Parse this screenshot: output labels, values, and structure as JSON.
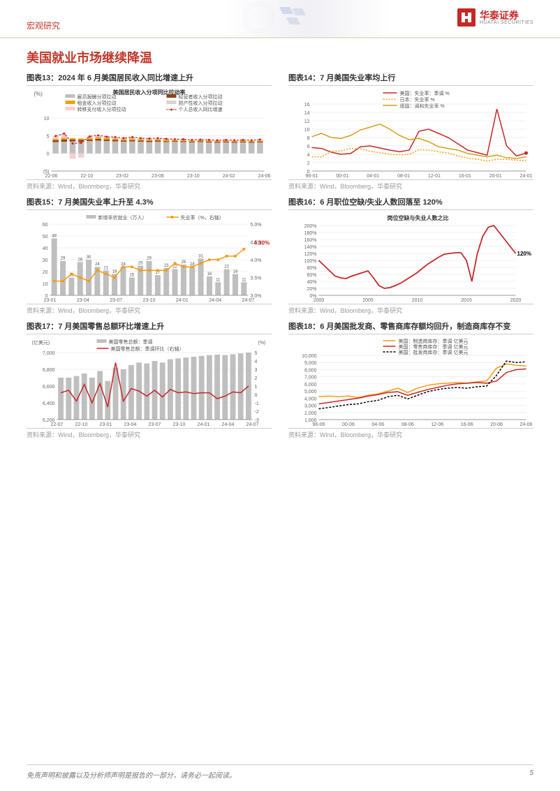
{
  "header": {
    "category": "宏观研究",
    "logo_cn": "华泰证券",
    "logo_en": "HUATAI SECURITIES"
  },
  "page_title": "美国就业市场继续降温",
  "footer": {
    "disclaimer": "免责声明和披露以及分析师声明是报告的一部分，请务必一起阅读。",
    "page_number": "5"
  },
  "source_text": "资料来源：Wind，Bloomberg，华泰研究",
  "colors": {
    "brand_red": "#c62828",
    "accent_red": "#c0392b",
    "bar_gray": "#bfbfbf",
    "orange": "#f39c12",
    "gold": "#d4a017",
    "grid": "#e0e0e0",
    "text_muted": "#999999",
    "brown": "#8b4513",
    "pink": "#f8cecc"
  },
  "charts": {
    "c13": {
      "title": "图表13：2024 年 6 月美国居民收入同比增速上升",
      "subtitle": "美国居民收入分项同比拉动率",
      "y_unit": "(%)",
      "ylim": [
        -5,
        10
      ],
      "yticks": [
        -5,
        0,
        5,
        10
      ],
      "x_labels": [
        "22-06",
        "22-10",
        "23-02",
        "23-06",
        "23-10",
        "24-02",
        "24-06"
      ],
      "legend": [
        {
          "label": "雇员报酬分项拉动",
          "color": "#bfbfbf"
        },
        {
          "label": "经营者收入分项拉动",
          "color": "#8b4513"
        },
        {
          "label": "租金收入分项拉动",
          "color": "#f39c12"
        },
        {
          "label": "财产性收入分项拉动",
          "color": "#d4d4d4"
        },
        {
          "label": "转移支付收入分项拉动",
          "color": "#f8cecc"
        },
        {
          "label": "个人总收入同比增速",
          "color": "#c62828",
          "type": "line"
        }
      ],
      "stacked_bars": {
        "emp": [
          3.2,
          3.3,
          3.4,
          3.3,
          3.5,
          3.6,
          3.5,
          3.4,
          3.3,
          3.4,
          3.3,
          3.2,
          3.3,
          3.2,
          3.3,
          3.2,
          3.1,
          3.2,
          3.1,
          3.0,
          3.1,
          3.0,
          3.1,
          3.0,
          3.1
        ],
        "biz": [
          0.5,
          0.6,
          0.5,
          0.5,
          0.4,
          0.5,
          0.4,
          0.4,
          0.3,
          0.3,
          0.3,
          0.3,
          0.3,
          0.2,
          0.2,
          0.2,
          0.2,
          0.2,
          0.2,
          0.2,
          0.2,
          0.2,
          0.2,
          0.2,
          0.2
        ],
        "rent": [
          0.4,
          0.5,
          0.4,
          0.4,
          0.5,
          0.5,
          0.5,
          0.4,
          0.4,
          0.5,
          0.4,
          0.4,
          0.4,
          0.4,
          0.3,
          0.3,
          0.3,
          0.3,
          0.3,
          0.3,
          0.3,
          0.3,
          0.3,
          0.3,
          0.3
        ],
        "trans": [
          0.8,
          1.2,
          -1.5,
          -1.2,
          0.4,
          0.5,
          0.3,
          0.4,
          0.3,
          0.4,
          0.3,
          0.3,
          0.3,
          0.3,
          0.2,
          0.3,
          0.2,
          0.2,
          0.2,
          0.2,
          0.2,
          0.2,
          0.2,
          0.2,
          0.3
        ]
      },
      "line_total": [
        4.9,
        5.6,
        2.8,
        3.0,
        4.8,
        5.1,
        4.7,
        4.6,
        4.3,
        4.6,
        4.3,
        4.2,
        4.3,
        4.1,
        4.0,
        4.0,
        3.8,
        3.9,
        3.8,
        3.7,
        3.8,
        3.7,
        3.8,
        3.7,
        3.9
      ]
    },
    "c14": {
      "title": "图表14：7 月美国失业率均上行",
      "ylim": [
        0,
        16
      ],
      "yticks": [
        0,
        2,
        4,
        6,
        8,
        10,
        12,
        14,
        16
      ],
      "x_labels": [
        "96-01",
        "00-01",
        "04-01",
        "08-01",
        "12-01",
        "16-01",
        "20-01",
        "24-01"
      ],
      "legend": [
        {
          "label": "美国：失业率：季调 %",
          "color": "#c62828"
        },
        {
          "label": "日本：失业率 %",
          "color": "#f39c12",
          "dash": true
        },
        {
          "label": "德国：调和失业率 %",
          "color": "#d4a017"
        }
      ],
      "us": [
        5.6,
        5.4,
        4.5,
        4.0,
        4.2,
        5.8,
        6.0,
        5.5,
        5.0,
        4.6,
        5.0,
        9.5,
        10.0,
        9.0,
        8.0,
        6.5,
        5.0,
        4.4,
        3.8,
        14.8,
        6.0,
        3.6,
        4.3
      ],
      "japan": [
        3.4,
        3.4,
        4.7,
        4.8,
        5.4,
        5.3,
        4.7,
        4.4,
        4.0,
        3.9,
        4.0,
        5.1,
        5.0,
        4.6,
        4.3,
        3.6,
        3.1,
        2.8,
        2.4,
        2.8,
        2.8,
        2.6,
        2.5
      ],
      "germany": [
        8.2,
        9.0,
        8.0,
        7.8,
        8.5,
        9.8,
        10.5,
        11.2,
        10.0,
        8.5,
        7.5,
        7.8,
        7.0,
        5.8,
        5.4,
        5.0,
        4.2,
        3.8,
        3.4,
        3.8,
        3.2,
        3.0,
        3.4
      ]
    },
    "c15": {
      "title": "图表15：7 月美国失业率上升至 4.3%",
      "ylim_left": [
        0,
        60
      ],
      "yticks_left": [
        0,
        10,
        20,
        30,
        40,
        50,
        60
      ],
      "ylim_right": [
        3.0,
        5.0
      ],
      "yticks_right": [
        "3.0%",
        "3.5%",
        "4.0%",
        "4.5%",
        "5.0%"
      ],
      "x_labels": [
        "23-01",
        "23-04",
        "23-07",
        "23-10",
        "24-01",
        "24-04",
        "24-07"
      ],
      "legend": [
        {
          "label": "新增非农就业（万人）",
          "color": "#bfbfbf"
        },
        {
          "label": "失业率（%，右轴）",
          "color": "#f39c12",
          "type": "line"
        }
      ],
      "bars": [
        48,
        29,
        15,
        28,
        30,
        24,
        21,
        18,
        24,
        15,
        25,
        29,
        17,
        23,
        22,
        26,
        24,
        31,
        16,
        11,
        22,
        18,
        11
      ],
      "bar_labels": [
        "48",
        "29",
        "15",
        "28",
        "30",
        "24",
        "21",
        "18",
        "24",
        "15",
        "25",
        "29",
        "17",
        "23",
        "22",
        "26",
        "24",
        "31",
        "16",
        "11",
        "22",
        "18",
        "11"
      ],
      "line": [
        3.4,
        3.4,
        3.6,
        3.5,
        3.4,
        3.7,
        3.6,
        3.5,
        3.8,
        3.8,
        3.7,
        3.7,
        3.7,
        3.7,
        3.9,
        3.8,
        3.8,
        3.9,
        4.0,
        4.0,
        4.1,
        4.1,
        4.3
      ],
      "annotation": {
        "label": "4.30%",
        "color": "#c62828"
      }
    },
    "c16": {
      "title": "图表16：6 月职位空缺/失业人数回落至 120%",
      "subtitle": "岗位空缺与失业人数之比",
      "ylim": [
        0,
        200
      ],
      "yticks": [
        "0%",
        "20%",
        "40%",
        "60%",
        "80%",
        "100%",
        "120%",
        "140%",
        "160%",
        "180%",
        "200%"
      ],
      "x_labels": [
        "2000",
        "2005",
        "2010",
        "2015",
        "2020"
      ],
      "line": [
        100,
        85,
        70,
        55,
        50,
        48,
        55,
        60,
        65,
        70,
        50,
        28,
        20,
        22,
        28,
        35,
        45,
        55,
        65,
        78,
        90,
        100,
        110,
        118,
        120,
        122,
        122,
        100,
        40,
        120,
        170,
        195,
        200,
        180,
        160,
        140,
        120
      ],
      "annotation": {
        "label": "120%",
        "color": "#000"
      }
    },
    "c17": {
      "title": "图表17：7 月美国零售总额环比增速上升",
      "y_left_unit": "(亿美元)",
      "y_right_unit": "(%)",
      "ylim_left": [
        6200,
        7000
      ],
      "yticks_left": [
        6200,
        6400,
        6600,
        6800,
        7000
      ],
      "ylim_right": [
        -3,
        5
      ],
      "yticks_right": [
        -3,
        -2,
        -1,
        0,
        1,
        2,
        3,
        4,
        5
      ],
      "x_labels": [
        "22-07",
        "22-10",
        "23-01",
        "23-04",
        "23-07",
        "23-10",
        "24-01",
        "24-04",
        "24-07"
      ],
      "legend": [
        {
          "label": "美国零售总额：季调",
          "color": "#bfbfbf"
        },
        {
          "label": "美国零售总额：季调环比（右轴）",
          "color": "#c62828",
          "type": "line"
        }
      ],
      "bars": [
        6700,
        6700,
        6720,
        6750,
        6700,
        6780,
        6660,
        6820,
        6800,
        6850,
        6880,
        6870,
        6900,
        6880,
        6920,
        6930,
        6940,
        6950,
        6960,
        6970,
        6975,
        6970,
        6980,
        6990,
        7000
      ],
      "line": [
        0.2,
        0.5,
        -0.8,
        1.2,
        -1.0,
        1.3,
        -1.5,
        3.8,
        -0.8,
        0.7,
        0.4,
        -0.2,
        0.5,
        -0.3,
        0.6,
        0.2,
        0.3,
        0.1,
        0.2,
        0.2,
        -0.5,
        -0.2,
        0.3,
        0.2,
        1.0
      ]
    },
    "c18": {
      "title": "图表18：6 月美国批发商、零售商库存额均回升，制造商库存不变",
      "ylim": [
        1000,
        10000
      ],
      "yticks": [
        1000,
        2000,
        3000,
        4000,
        5000,
        6000,
        7000,
        8000,
        9000,
        10000
      ],
      "x_labels": [
        "96-06",
        "00-06",
        "04-06",
        "08-06",
        "12-06",
        "16-06",
        "20-06",
        "24-06"
      ],
      "legend": [
        {
          "label": "美国：制造商库存：季调 亿美元",
          "color": "#f39c12"
        },
        {
          "label": "美国：零售商库存：季调 亿美元",
          "color": "#c62828"
        },
        {
          "label": "美国：批发商库存：季调 亿美元",
          "color": "#000",
          "dash": true
        }
      ],
      "mfg": [
        4200,
        4300,
        4200,
        4300,
        4100,
        4400,
        4600,
        5000,
        5400,
        4800,
        5400,
        5800,
        6000,
        6100,
        6200,
        6100,
        6300,
        6400,
        8200,
        8800,
        8600,
        8500
      ],
      "retail": [
        3200,
        3400,
        3600,
        3800,
        4000,
        4300,
        4500,
        4800,
        4900,
        4400,
        4800,
        5200,
        5500,
        5800,
        6000,
        6100,
        6200,
        6100,
        6400,
        7600,
        8000,
        8100
      ],
      "whole": [
        2500,
        2700,
        2900,
        3100,
        3200,
        3500,
        3700,
        4200,
        4400,
        3900,
        4400,
        4900,
        5200,
        5400,
        5500,
        5400,
        5600,
        5700,
        7200,
        9200,
        9000,
        9100
      ]
    }
  }
}
